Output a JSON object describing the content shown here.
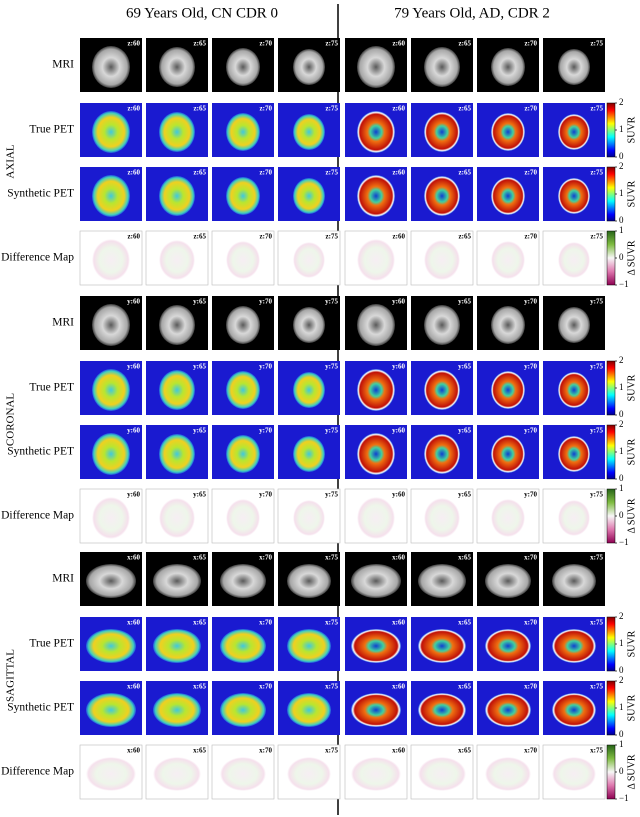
{
  "header": {
    "left": "69 Years Old, CN CDR 0",
    "right": "79 Years Old, AD, CDR 2"
  },
  "row_labels": [
    "MRI",
    "True PET",
    "Synthetic PET",
    "Difference Map"
  ],
  "sections": [
    {
      "name": "AXIAL",
      "slices": [
        "z:60",
        "z:65",
        "z:70",
        "z:75"
      ]
    },
    {
      "name": "CORONAL",
      "slices": [
        "y:60",
        "y:65",
        "y:70",
        "y:75"
      ]
    },
    {
      "name": "SAGITTAL",
      "slices": [
        "x:60",
        "x:65",
        "x:70",
        "x:75"
      ]
    }
  ],
  "pet_colorbar": {
    "label": "SUVR",
    "lim": [
      0,
      2
    ],
    "ticks": [
      0,
      1,
      2
    ]
  },
  "diff_colorbar": {
    "label": "Δ SUVR",
    "lim": [
      -1,
      1
    ],
    "ticks": [
      {
        "value": -1,
        "label": "−1"
      },
      0,
      1
    ]
  }
}
